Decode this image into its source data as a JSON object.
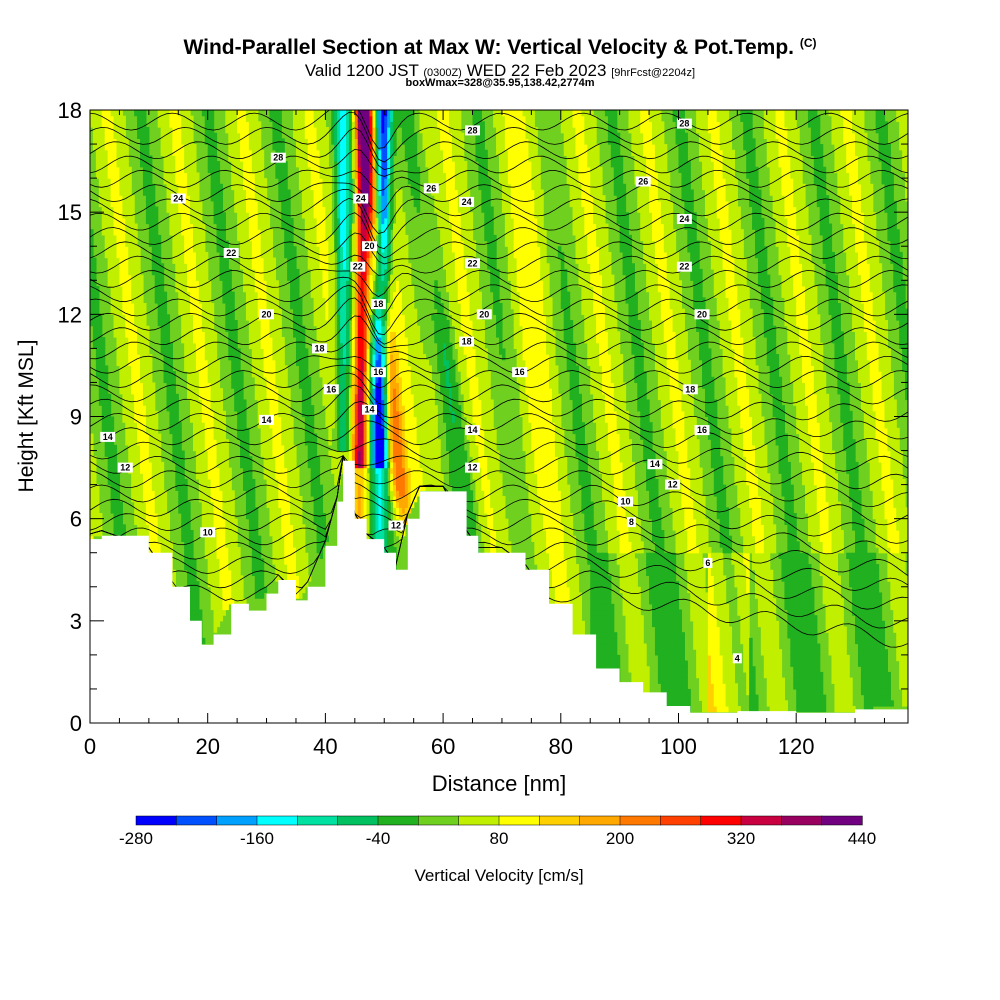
{
  "header": {
    "title": "Wind-Parallel Section at Max W: Vertical Velocity & Pot.Temp.",
    "copyright": "(C)",
    "valid_prefix": "Valid 1200 JST",
    "valid_utc": "(0300Z)",
    "valid_date": "WED 22 Feb 2023",
    "forecast_tag": "[9hrFcst@2204z]",
    "box_info": "boxWmax=328@35.95,138.42,2774m"
  },
  "chart_data": {
    "type": "heatmap",
    "xlabel": "Distance [nm]",
    "ylabel": "Height [Kft MSL]",
    "xlim": [
      0,
      139
    ],
    "ylim": [
      0,
      18
    ],
    "x_ticks": [
      0,
      20,
      40,
      60,
      80,
      100,
      120
    ],
    "y_ticks": [
      0,
      3,
      6,
      9,
      12,
      15,
      18
    ],
    "colorbar": {
      "label": "Vertical Velocity [cm/s]",
      "tick_labels": [
        "-280",
        "-160",
        "-40",
        "80",
        "200",
        "320",
        "440"
      ],
      "min": -280,
      "max": 440,
      "step": 40,
      "colors": [
        "#0000ff",
        "#0050ff",
        "#00a0ff",
        "#00ffff",
        "#00e0a0",
        "#00c060",
        "#20b020",
        "#70d020",
        "#c0f000",
        "#ffff00",
        "#ffd000",
        "#ffa800",
        "#ff7800",
        "#ff4000",
        "#ff0000",
        "#c80040",
        "#980060",
        "#700080"
      ]
    },
    "terrain_kft": [
      [
        0,
        5.4
      ],
      [
        2,
        5.5
      ],
      [
        10,
        5.0
      ],
      [
        14,
        4.0
      ],
      [
        17,
        3.0
      ],
      [
        19,
        2.3
      ],
      [
        21,
        2.6
      ],
      [
        24,
        3.5
      ],
      [
        27,
        3.3
      ],
      [
        30,
        3.8
      ],
      [
        32,
        4.2
      ],
      [
        35,
        3.6
      ],
      [
        37,
        4.0
      ],
      [
        40,
        5.2
      ],
      [
        42,
        6.5
      ],
      [
        43,
        7.7
      ],
      [
        45,
        6.0
      ],
      [
        47,
        5.4
      ],
      [
        50,
        5.0
      ],
      [
        52,
        4.5
      ],
      [
        54,
        6.0
      ],
      [
        56,
        6.8
      ],
      [
        60,
        6.8
      ],
      [
        64,
        5.5
      ],
      [
        66,
        5.0
      ],
      [
        70,
        5.0
      ],
      [
        74,
        4.5
      ],
      [
        78,
        3.5
      ],
      [
        82,
        2.6
      ],
      [
        86,
        1.6
      ],
      [
        90,
        1.2
      ],
      [
        94,
        0.9
      ],
      [
        98,
        0.5
      ],
      [
        102,
        0.3
      ],
      [
        110,
        0.35
      ],
      [
        120,
        0.3
      ],
      [
        130,
        0.4
      ],
      [
        139,
        0.45
      ]
    ],
    "updraft_columns": [
      {
        "x_nm": 46.0,
        "w_cms": 328,
        "description_color": "#ff0000"
      },
      {
        "x_nm": 49.5,
        "w_cms": -280,
        "description_color": "#0000ff"
      },
      {
        "x_nm": 52.5,
        "w_cms": 200,
        "description_color": "#ffa800"
      },
      {
        "x_nm": 60.0,
        "w_cms": 80,
        "description_color": "#ffff00"
      },
      {
        "x_nm": 77.0,
        "w_cms": 40,
        "description_color": "#c0f000"
      }
    ],
    "theta_contour_labels": [
      {
        "text": "28",
        "x": 65,
        "y": 17.4
      },
      {
        "text": "26",
        "x": 58,
        "y": 15.7
      },
      {
        "text": "24",
        "x": 64,
        "y": 15.3
      },
      {
        "text": "22",
        "x": 65,
        "y": 13.5
      },
      {
        "text": "20",
        "x": 67,
        "y": 12.0
      },
      {
        "text": "18",
        "x": 64,
        "y": 11.2
      },
      {
        "text": "16",
        "x": 73,
        "y": 10.3
      },
      {
        "text": "14",
        "x": 65,
        "y": 8.6
      },
      {
        "text": "12",
        "x": 65,
        "y": 7.5
      },
      {
        "text": "12",
        "x": 52,
        "y": 5.8
      },
      {
        "text": "28",
        "x": 32,
        "y": 16.6
      },
      {
        "text": "24",
        "x": 15,
        "y": 15.4
      },
      {
        "text": "22",
        "x": 24,
        "y": 13.8
      },
      {
        "text": "20",
        "x": 30,
        "y": 12.0
      },
      {
        "text": "18",
        "x": 39,
        "y": 11.0
      },
      {
        "text": "16",
        "x": 41,
        "y": 9.8
      },
      {
        "text": "14",
        "x": 30,
        "y": 8.9
      },
      {
        "text": "14",
        "x": 3,
        "y": 8.4
      },
      {
        "text": "12",
        "x": 6,
        "y": 7.5
      },
      {
        "text": "10",
        "x": 20,
        "y": 5.6
      },
      {
        "text": "24",
        "x": 46,
        "y": 15.4
      },
      {
        "text": "20",
        "x": 47.5,
        "y": 14.0
      },
      {
        "text": "22",
        "x": 45.5,
        "y": 13.4
      },
      {
        "text": "18",
        "x": 49,
        "y": 12.3
      },
      {
        "text": "16",
        "x": 49,
        "y": 10.3
      },
      {
        "text": "14",
        "x": 47.5,
        "y": 9.2
      },
      {
        "text": "28",
        "x": 101,
        "y": 17.6
      },
      {
        "text": "26",
        "x": 94,
        "y": 15.9
      },
      {
        "text": "24",
        "x": 101,
        "y": 14.8
      },
      {
        "text": "22",
        "x": 101,
        "y": 13.4
      },
      {
        "text": "20",
        "x": 104,
        "y": 12.0
      },
      {
        "text": "18",
        "x": 102,
        "y": 9.8
      },
      {
        "text": "16",
        "x": 104,
        "y": 8.6
      },
      {
        "text": "14",
        "x": 96,
        "y": 7.6
      },
      {
        "text": "12",
        "x": 99,
        "y": 7.0
      },
      {
        "text": "10",
        "x": 91,
        "y": 6.5
      },
      {
        "text": "8",
        "x": 92,
        "y": 5.9
      },
      {
        "text": "6",
        "x": 105,
        "y": 4.7
      },
      {
        "text": "4",
        "x": 110,
        "y": 1.9
      }
    ]
  }
}
